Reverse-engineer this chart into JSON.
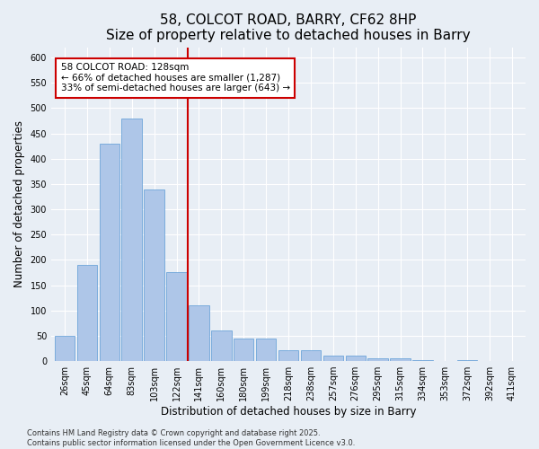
{
  "title1": "58, COLCOT ROAD, BARRY, CF62 8HP",
  "title2": "Size of property relative to detached houses in Barry",
  "xlabel": "Distribution of detached houses by size in Barry",
  "ylabel": "Number of detached properties",
  "categories": [
    "26sqm",
    "45sqm",
    "64sqm",
    "83sqm",
    "103sqm",
    "122sqm",
    "141sqm",
    "160sqm",
    "180sqm",
    "199sqm",
    "218sqm",
    "238sqm",
    "257sqm",
    "276sqm",
    "295sqm",
    "315sqm",
    "334sqm",
    "353sqm",
    "372sqm",
    "392sqm",
    "411sqm"
  ],
  "values": [
    50,
    190,
    430,
    480,
    340,
    175,
    110,
    60,
    45,
    45,
    22,
    22,
    10,
    10,
    5,
    5,
    2,
    0,
    2,
    0,
    0
  ],
  "bar_color": "#aec6e8",
  "bar_edge_color": "#5b9bd5",
  "vline_x_index": 6,
  "vline_color": "#cc0000",
  "annotation_text": "58 COLCOT ROAD: 128sqm\n← 66% of detached houses are smaller (1,287)\n33% of semi-detached houses are larger (643) →",
  "annotation_box_color": "#ffffff",
  "annotation_box_edge": "#cc0000",
  "ylim": [
    0,
    620
  ],
  "yticks": [
    0,
    50,
    100,
    150,
    200,
    250,
    300,
    350,
    400,
    450,
    500,
    550,
    600
  ],
  "background_color": "#e8eef5",
  "footer": "Contains HM Land Registry data © Crown copyright and database right 2025.\nContains public sector information licensed under the Open Government Licence v3.0.",
  "title_fontsize": 11,
  "label_fontsize": 8.5,
  "tick_fontsize": 7,
  "footer_fontsize": 6,
  "annotation_fontsize": 7.5
}
